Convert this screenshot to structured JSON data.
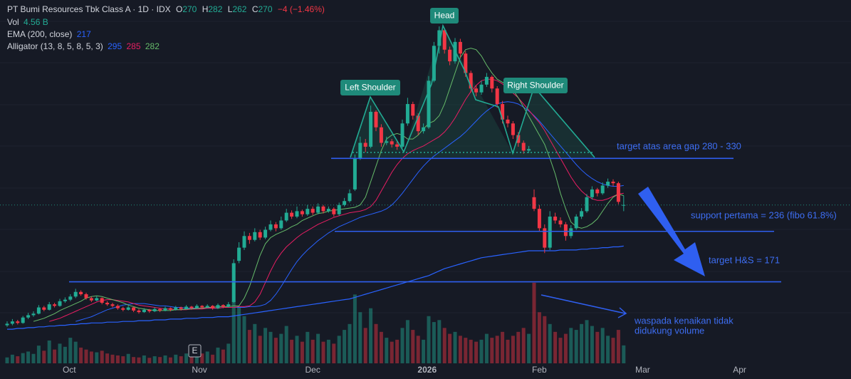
{
  "chart_data": {
    "type": "candlestick",
    "legend": {
      "title": "PT Bumi Resources Tbk Class A · 1D · IDX",
      "open_tag": "O",
      "open": 270,
      "high_tag": "H",
      "high": 282,
      "low_tag": "L",
      "low": 262,
      "close_tag": "C",
      "close": 270,
      "change_label": "−4 (−1.46%)",
      "vol_tag": "Vol",
      "vol_label": "4.56 B"
    },
    "up_color": "#22ab94",
    "down_color": "#f23645",
    "xlim": [
      0,
      160
    ],
    "xticks": [
      {
        "value": 11.8,
        "label": "Oct"
      },
      {
        "value": 36.5,
        "label": "Nov"
      },
      {
        "value": 58,
        "label": "Dec"
      },
      {
        "value": 79.7,
        "label": "2026"
      },
      {
        "value": 101,
        "label": "Feb"
      },
      {
        "value": 120.6,
        "label": "Mar"
      },
      {
        "value": 139,
        "label": "Apr"
      }
    ],
    "ylim": [
      66,
      534
    ],
    "vlim": [
      0,
      25
    ],
    "earnings_badge": "E",
    "ohlc": [
      [
        115,
        120,
        113,
        117
      ],
      [
        117,
        123,
        115,
        120
      ],
      [
        120,
        122,
        116,
        118
      ],
      [
        118,
        127,
        117,
        125
      ],
      [
        125,
        131,
        123,
        128
      ],
      [
        128,
        133,
        126,
        130
      ],
      [
        130,
        141,
        129,
        138
      ],
      [
        138,
        140,
        133,
        135
      ],
      [
        135,
        145,
        134,
        142
      ],
      [
        142,
        144,
        138,
        140
      ],
      [
        140,
        149,
        139,
        146
      ],
      [
        146,
        151,
        144,
        148
      ],
      [
        148,
        155,
        146,
        152
      ],
      [
        152,
        162,
        150,
        158
      ],
      [
        158,
        160,
        153,
        155
      ],
      [
        155,
        157,
        148,
        150
      ],
      [
        150,
        152,
        145,
        147
      ],
      [
        147,
        153,
        146,
        150
      ],
      [
        150,
        151,
        142,
        144
      ],
      [
        144,
        146,
        140,
        142
      ],
      [
        142,
        144,
        138,
        140
      ],
      [
        140,
        142,
        135,
        137
      ],
      [
        137,
        139,
        133,
        135
      ],
      [
        135,
        140,
        134,
        138
      ],
      [
        138,
        139,
        132,
        134
      ],
      [
        134,
        136,
        130,
        132
      ],
      [
        132,
        137,
        131,
        135
      ],
      [
        135,
        136,
        131,
        133
      ],
      [
        133,
        138,
        132,
        136
      ],
      [
        136,
        137,
        132,
        134
      ],
      [
        134,
        139,
        133,
        137
      ],
      [
        137,
        138,
        133,
        135
      ],
      [
        135,
        140,
        134,
        138
      ],
      [
        138,
        139,
        134,
        136
      ],
      [
        136,
        141,
        135,
        139
      ],
      [
        139,
        140,
        135,
        137
      ],
      [
        137,
        142,
        136,
        140
      ],
      [
        140,
        141,
        136,
        138
      ],
      [
        138,
        142,
        137,
        140
      ],
      [
        140,
        141,
        135,
        137
      ],
      [
        137,
        143,
        136,
        141
      ],
      [
        141,
        142,
        137,
        139
      ],
      [
        139,
        145,
        138,
        142
      ],
      [
        145,
        200,
        144,
        195
      ],
      [
        198,
        222,
        195,
        215
      ],
      [
        215,
        236,
        212,
        230
      ],
      [
        230,
        234,
        220,
        225
      ],
      [
        225,
        240,
        223,
        235
      ],
      [
        235,
        238,
        225,
        228
      ],
      [
        228,
        242,
        226,
        238
      ],
      [
        238,
        250,
        236,
        245
      ],
      [
        245,
        248,
        236,
        240
      ],
      [
        240,
        255,
        238,
        250
      ],
      [
        250,
        265,
        248,
        260
      ],
      [
        260,
        263,
        252,
        255
      ],
      [
        255,
        268,
        253,
        262
      ],
      [
        262,
        264,
        255,
        258
      ],
      [
        258,
        270,
        256,
        265
      ],
      [
        265,
        268,
        257,
        260
      ],
      [
        260,
        272,
        258,
        268
      ],
      [
        268,
        270,
        259,
        262
      ],
      [
        262,
        268,
        260,
        265
      ],
      [
        265,
        267,
        255,
        258
      ],
      [
        258,
        273,
        256,
        270
      ],
      [
        270,
        279,
        268,
        275
      ],
      [
        275,
        290,
        273,
        285
      ],
      [
        290,
        335,
        288,
        330
      ],
      [
        330,
        358,
        328,
        350
      ],
      [
        350,
        355,
        338,
        345
      ],
      [
        345,
        398,
        343,
        390
      ],
      [
        390,
        392,
        365,
        370
      ],
      [
        370,
        374,
        345,
        350
      ],
      [
        350,
        358,
        347,
        352
      ],
      [
        352,
        355,
        344,
        348
      ],
      [
        348,
        352,
        341,
        345
      ],
      [
        345,
        380,
        343,
        375
      ],
      [
        375,
        408,
        372,
        400
      ],
      [
        400,
        403,
        380,
        385
      ],
      [
        385,
        388,
        360,
        365
      ],
      [
        365,
        375,
        362,
        370
      ],
      [
        370,
        436,
        368,
        430
      ],
      [
        430,
        480,
        428,
        475
      ],
      [
        475,
        500,
        465,
        495
      ],
      [
        495,
        498,
        465,
        470
      ],
      [
        470,
        474,
        450,
        455
      ],
      [
        455,
        485,
        452,
        480
      ],
      [
        480,
        484,
        460,
        465
      ],
      [
        465,
        468,
        435,
        440
      ],
      [
        440,
        443,
        415,
        420
      ],
      [
        420,
        424,
        410,
        415
      ],
      [
        415,
        430,
        412,
        425
      ],
      [
        425,
        440,
        422,
        435
      ],
      [
        435,
        437,
        415,
        420
      ],
      [
        420,
        423,
        395,
        400
      ],
      [
        400,
        404,
        375,
        380
      ],
      [
        380,
        385,
        370,
        375
      ],
      [
        375,
        378,
        355,
        360
      ],
      [
        360,
        364,
        345,
        350
      ],
      [
        350,
        353,
        336,
        340
      ],
      [
        340,
        346,
        337,
        342
      ],
      [
        280,
        290,
        262,
        265
      ],
      [
        265,
        270,
        236,
        240
      ],
      [
        240,
        245,
        208,
        215
      ],
      [
        215,
        262,
        212,
        255
      ],
      [
        255,
        260,
        246,
        250
      ],
      [
        250,
        254,
        241,
        245
      ],
      [
        245,
        248,
        224,
        230
      ],
      [
        230,
        244,
        227,
        240
      ],
      [
        240,
        258,
        238,
        255
      ],
      [
        255,
        266,
        252,
        262
      ],
      [
        262,
        284,
        260,
        280
      ],
      [
        280,
        294,
        277,
        290
      ],
      [
        290,
        292,
        281,
        285
      ],
      [
        285,
        299,
        283,
        295
      ],
      [
        295,
        304,
        292,
        300
      ],
      [
        300,
        303,
        294,
        298
      ],
      [
        298,
        300,
        271,
        274
      ],
      [
        270,
        282,
        262,
        270
      ]
    ],
    "volume": [
      1.5,
      2.2,
      1.8,
      2.6,
      3.0,
      2.4,
      4.5,
      3.2,
      5.8,
      3.5,
      5.0,
      4.2,
      6.5,
      5.5,
      4.0,
      3.5,
      3.0,
      2.8,
      3.2,
      2.5,
      2.2,
      2.0,
      1.8,
      2.4,
      1.6,
      1.5,
      2.0,
      1.4,
      1.8,
      1.6,
      2.0,
      1.5,
      2.2,
      1.8,
      2.5,
      2.0,
      2.8,
      2.5,
      3.0,
      2.2,
      4.0,
      3.5,
      5.0,
      16.0,
      14.5,
      12.0,
      8.5,
      10.0,
      7.0,
      9.0,
      8.0,
      6.5,
      7.5,
      9.5,
      6.0,
      7.0,
      5.5,
      8.0,
      6.0,
      7.5,
      5.5,
      6.0,
      5.0,
      7.0,
      8.5,
      10.0,
      17.5,
      13.0,
      9.0,
      14.0,
      10.0,
      8.0,
      6.5,
      5.5,
      6.0,
      9.0,
      11.0,
      8.5,
      7.0,
      6.0,
      12.0,
      10.5,
      11.0,
      9.0,
      7.5,
      8.0,
      7.0,
      6.5,
      6.0,
      5.5,
      6.0,
      7.5,
      6.5,
      7.0,
      8.0,
      6.0,
      7.0,
      8.0,
      9.0,
      7.5,
      20.5,
      13.0,
      12.0,
      10.0,
      8.0,
      6.5,
      7.5,
      9.0,
      8.5,
      10.0,
      11.0,
      9.5,
      8.0,
      9.0,
      7.0,
      6.5,
      8.5,
      4.56
    ],
    "ema": {
      "label": "EMA (200, close)",
      "value": 217,
      "color": "#2962ff",
      "values": [
        110,
        110,
        111,
        111,
        112,
        112,
        113,
        113,
        114,
        114,
        115,
        115,
        116,
        116,
        117,
        117,
        118,
        118,
        118,
        119,
        119,
        119,
        120,
        120,
        120,
        121,
        121,
        121,
        122,
        122,
        122,
        123,
        123,
        123,
        124,
        124,
        124,
        125,
        125,
        125,
        126,
        126,
        126,
        127,
        128,
        129,
        130,
        131,
        132,
        133,
        134,
        135,
        136,
        137,
        138,
        139,
        140,
        141,
        142,
        143,
        144,
        145,
        146,
        147,
        148,
        149,
        151,
        153,
        155,
        157,
        159,
        161,
        163,
        165,
        167,
        169,
        171,
        173,
        175,
        177,
        179,
        182,
        185,
        188,
        190,
        192,
        194,
        196,
        198,
        200,
        202,
        203,
        204,
        205,
        206,
        207,
        208,
        209,
        210,
        211,
        211,
        211,
        211,
        211,
        211,
        212,
        212,
        212,
        212,
        213,
        213,
        214,
        214,
        215,
        215,
        216,
        216,
        217
      ]
    },
    "alligator": {
      "label": "Alligator (13, 8, 5, 8, 5, 3)",
      "lines": [
        {
          "value": 295,
          "color": "#2962ff",
          "values": [
            null,
            null,
            null,
            null,
            null,
            null,
            null,
            null,
            null,
            null,
            null,
            null,
            null,
            120,
            122,
            124,
            126,
            129,
            132,
            135,
            137,
            139,
            141,
            142,
            143,
            143,
            143,
            142,
            141,
            140,
            140,
            139,
            138,
            138,
            137,
            137,
            137,
            137,
            137,
            137,
            137,
            138,
            138,
            138,
            138,
            138,
            139,
            139,
            140,
            142,
            147,
            155,
            165,
            176,
            187,
            197,
            205,
            212,
            218,
            224,
            229,
            234,
            238,
            242,
            245,
            248,
            251,
            254,
            256,
            258,
            260,
            262,
            265,
            270,
            277,
            285,
            294,
            303,
            312,
            320,
            327,
            333,
            338,
            343,
            348,
            353,
            358,
            364,
            371,
            378,
            385,
            391,
            396,
            400,
            402,
            403,
            402,
            400,
            396,
            391,
            385,
            378,
            370,
            362,
            354,
            346,
            338,
            330,
            322,
            315,
            309,
            304,
            300,
            297,
            295,
            294,
            294,
            295
          ]
        },
        {
          "value": 285,
          "color": "#e91e63",
          "values": [
            null,
            null,
            null,
            null,
            null,
            null,
            null,
            null,
            120,
            122,
            124,
            127,
            130,
            133,
            136,
            139,
            142,
            145,
            147,
            148,
            148,
            147,
            146,
            145,
            143,
            141,
            140,
            139,
            138,
            137,
            136,
            136,
            135,
            135,
            135,
            136,
            136,
            136,
            137,
            137,
            137,
            138,
            138,
            138,
            139,
            139,
            140,
            145,
            155,
            170,
            185,
            198,
            208,
            216,
            222,
            228,
            233,
            237,
            241,
            245,
            248,
            251,
            254,
            256,
            258,
            260,
            261,
            262,
            264,
            268,
            276,
            288,
            300,
            312,
            322,
            330,
            336,
            340,
            343,
            346,
            350,
            354,
            358,
            364,
            372,
            382,
            394,
            406,
            416,
            424,
            430,
            432,
            432,
            430,
            426,
            420,
            414,
            408,
            400,
            392,
            384,
            376,
            366,
            354,
            342,
            330,
            318,
            306,
            296,
            288,
            282,
            278,
            276,
            276,
            278,
            281,
            284,
            285
          ]
        },
        {
          "value": 282,
          "color": "#66bb6a",
          "values": [
            null,
            null,
            null,
            null,
            null,
            120,
            122,
            124,
            127,
            130,
            134,
            137,
            140,
            143,
            146,
            150,
            152,
            153,
            152,
            150,
            148,
            146,
            144,
            141,
            139,
            137,
            136,
            135,
            134,
            134,
            134,
            134,
            135,
            135,
            136,
            136,
            137,
            137,
            138,
            138,
            139,
            139,
            139,
            140,
            140,
            150,
            165,
            185,
            205,
            220,
            228,
            232,
            235,
            238,
            242,
            245,
            250,
            253,
            256,
            259,
            260,
            262,
            263,
            264,
            265,
            266,
            267,
            270,
            280,
            300,
            320,
            340,
            355,
            360,
            362,
            360,
            355,
            355,
            360,
            368,
            375,
            378,
            385,
            400,
            420,
            440,
            460,
            470,
            472,
            470,
            462,
            450,
            440,
            432,
            428,
            425,
            418,
            408,
            396,
            384,
            372,
            360,
            348,
            330,
            310,
            285,
            265,
            248,
            242,
            240,
            242,
            246,
            252,
            262,
            272,
            280,
            284,
            282
          ]
        }
      ]
    },
    "pattern_labels": [
      "Left Shoulder",
      "Head",
      "Right Shoulder"
    ],
    "levels": [
      {
        "text": "target atas area gap 280 - 330",
        "value": 330
      },
      {
        "text": "support pertama = 236 (fibo 61.8%)",
        "value": 236
      },
      {
        "text": "target H&S = 171",
        "value": 171
      }
    ],
    "volume_note": [
      "waspada kenaikan tidak",
      "didukung volume"
    ]
  }
}
